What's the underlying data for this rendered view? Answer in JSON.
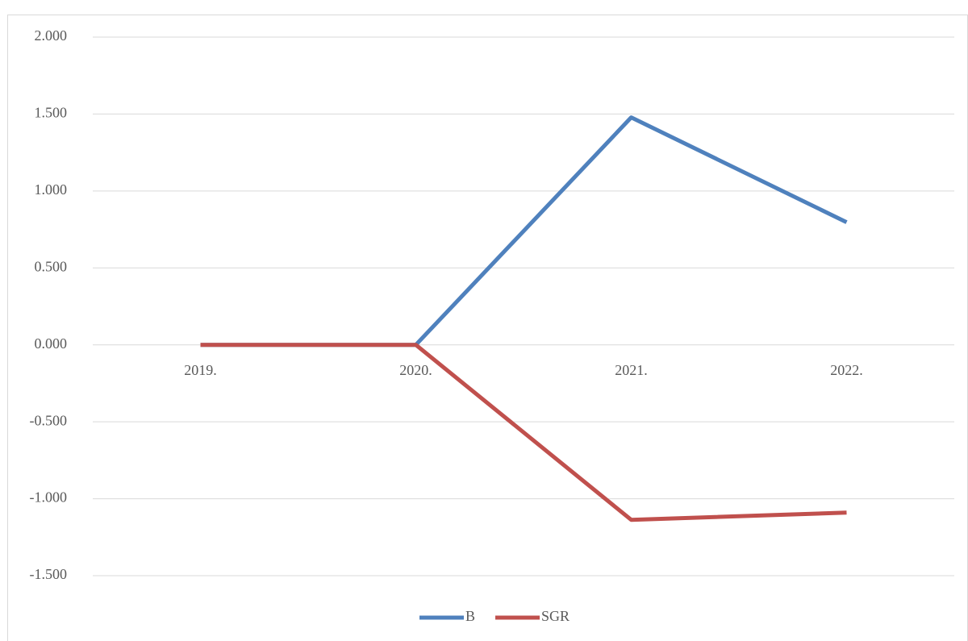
{
  "chart_data": {
    "type": "line",
    "categories": [
      "2019.",
      "2020.",
      "2021.",
      "2022."
    ],
    "series": [
      {
        "name": "B",
        "color": "#4f81bd",
        "values": [
          0,
          0,
          1.478,
          0.797
        ]
      },
      {
        "name": "SGR",
        "color": "#c0504d",
        "values": [
          0,
          0,
          -1.137,
          -1.09
        ]
      }
    ],
    "ylim": [
      -1.5,
      2
    ],
    "yticks": [
      {
        "value": -1.5,
        "label": "-1.500"
      },
      {
        "value": -1,
        "label": "-1.000"
      },
      {
        "value": -0.5,
        "label": "-0.500"
      },
      {
        "value": 0,
        "label": "0.000"
      },
      {
        "value": 0.5,
        "label": "0.500"
      },
      {
        "value": 1,
        "label": "1.000"
      },
      {
        "value": 1.5,
        "label": "1.500"
      },
      {
        "value": 2,
        "label": "2.000"
      }
    ],
    "grid": true,
    "legend": "bottom"
  }
}
